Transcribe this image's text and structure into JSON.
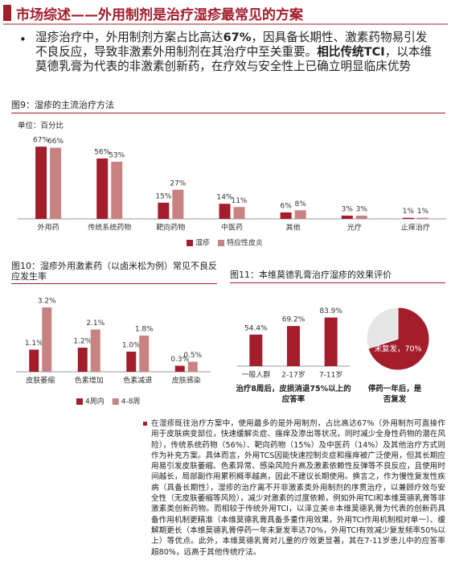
{
  "header": {
    "title": "市场综述——外用制剂是治疗湿疹最常见的方案"
  },
  "bullet": [
    "湿疹治疗中，外用制剂方案占比高达",
    "67%",
    "，因具备长期性、激素药物易引发不良反应，导致非激素外用制剂在其治疗中至关重要。",
    "相比传统TCI",
    "，以本维莫德乳膏为代表的非激素创新药，在疗效与安全性上已确立明显临床优势"
  ],
  "chart_data": [
    {
      "type": "bar",
      "title": "图9：湿疹的主流治疗方法",
      "unit": "单位：百分比",
      "categories": [
        "外用药",
        "传统系统药物",
        "靶向药物",
        "中医药",
        "其他",
        "光疗",
        "止痒治疗"
      ],
      "series": [
        {
          "name": "湿疹",
          "color": "#a31d2b",
          "values": [
            67,
            56,
            15,
            14,
            6,
            3,
            1
          ],
          "value_labels": [
            "67%",
            "56%",
            "15%",
            "14%",
            "6%",
            "3%",
            "1%"
          ]
        },
        {
          "name": "特应性皮炎",
          "color": "#c98282",
          "values": [
            66,
            53,
            27,
            11,
            8,
            3,
            1
          ],
          "value_labels": [
            "66%",
            "53%",
            "27%",
            "11%",
            "8%",
            "3%",
            "1%"
          ]
        }
      ]
    },
    {
      "type": "bar",
      "title": "图10：湿疹外用激素药（以卤米松为例）常见不良反应发生率",
      "categories": [
        "皮肤萎缩",
        "色素增加",
        "色素减退",
        "皮肤感染"
      ],
      "series": [
        {
          "name": "4周内",
          "color": "#a31d2b",
          "values": [
            1.1,
            1.2,
            1.0,
            0.3
          ],
          "value_labels": [
            "1.1%",
            "1.2%",
            "1.0%",
            "0.3%"
          ]
        },
        {
          "name": "4-8周",
          "color": "#c98282",
          "values": [
            3.2,
            2.1,
            1.8,
            0.5
          ],
          "value_labels": [
            "3.2%",
            "2.1%",
            "1.8%",
            "0.5%"
          ]
        }
      ]
    },
    {
      "type": "bar",
      "title": "图11：本维莫德乳膏治疗湿疹的效果评价",
      "categories": [
        "一般人群",
        "2-17岁",
        "7-11岁"
      ],
      "values": [
        54.4,
        69.2,
        83.9
      ],
      "value_labels": [
        "54.4%",
        "69.2%",
        "83.9%"
      ],
      "color": "#a31d2b",
      "caption": "治疗8周后，皮损消退75%以上的应答率"
    },
    {
      "type": "pie",
      "values": [
        70,
        30
      ],
      "labels": [
        "未复发，70%",
        null
      ],
      "colors": [
        "#a31d2b",
        "#e6e6e6"
      ],
      "caption": "停药一年后，是否复发"
    }
  ],
  "notes": "在湿疹既往治疗方案中，使用最多的是外用制剂，占比高达67%（外用制剂可直接作用于皮肤病变部位，快速缓解炎症、瘙痒及渗出等状况，同时减少全身性药物的潜在风险），传统系统药物（56%）、靶向药物（15%）及中医药（14%）及其他治疗方式则作为补充方案。具体而言，外用TCS因能快速控制炎症和瘙痒被广泛使用，但其长期应用易引发皮肤萎缩、色素异常、感染风险升高及激素依赖性反弹等不良反应，且使用时间越长，局部副作用累积概率越高，因此不建议长期使用。换言之，作为慢性复发性疾病（具备长期性），湿疹的治疗离不开非激素类外用制剂的序贯治疗，以兼顾疗效与安全性（无皮肤萎缩等风险），减少对激素的过度依赖，例如外用TCI和本维莫德乳膏等非激素类创新药物。而相较于传统外用TCI，以泽立美®本维莫德乳膏为代表的创新药具备作用机制更精准（本维莫德乳膏具备多重作用效果，外用TCI作用机制相对单一）、缓解期更长（本维莫德乳膏停药一年未复发率达70%，外用TCI有效减少复发频率50%以上）等优点。此外，本维莫德乳膏对儿童的疗效更显著，其在7-11岁患儿中的应答率超80%，远高于其他传统疗法。"
}
